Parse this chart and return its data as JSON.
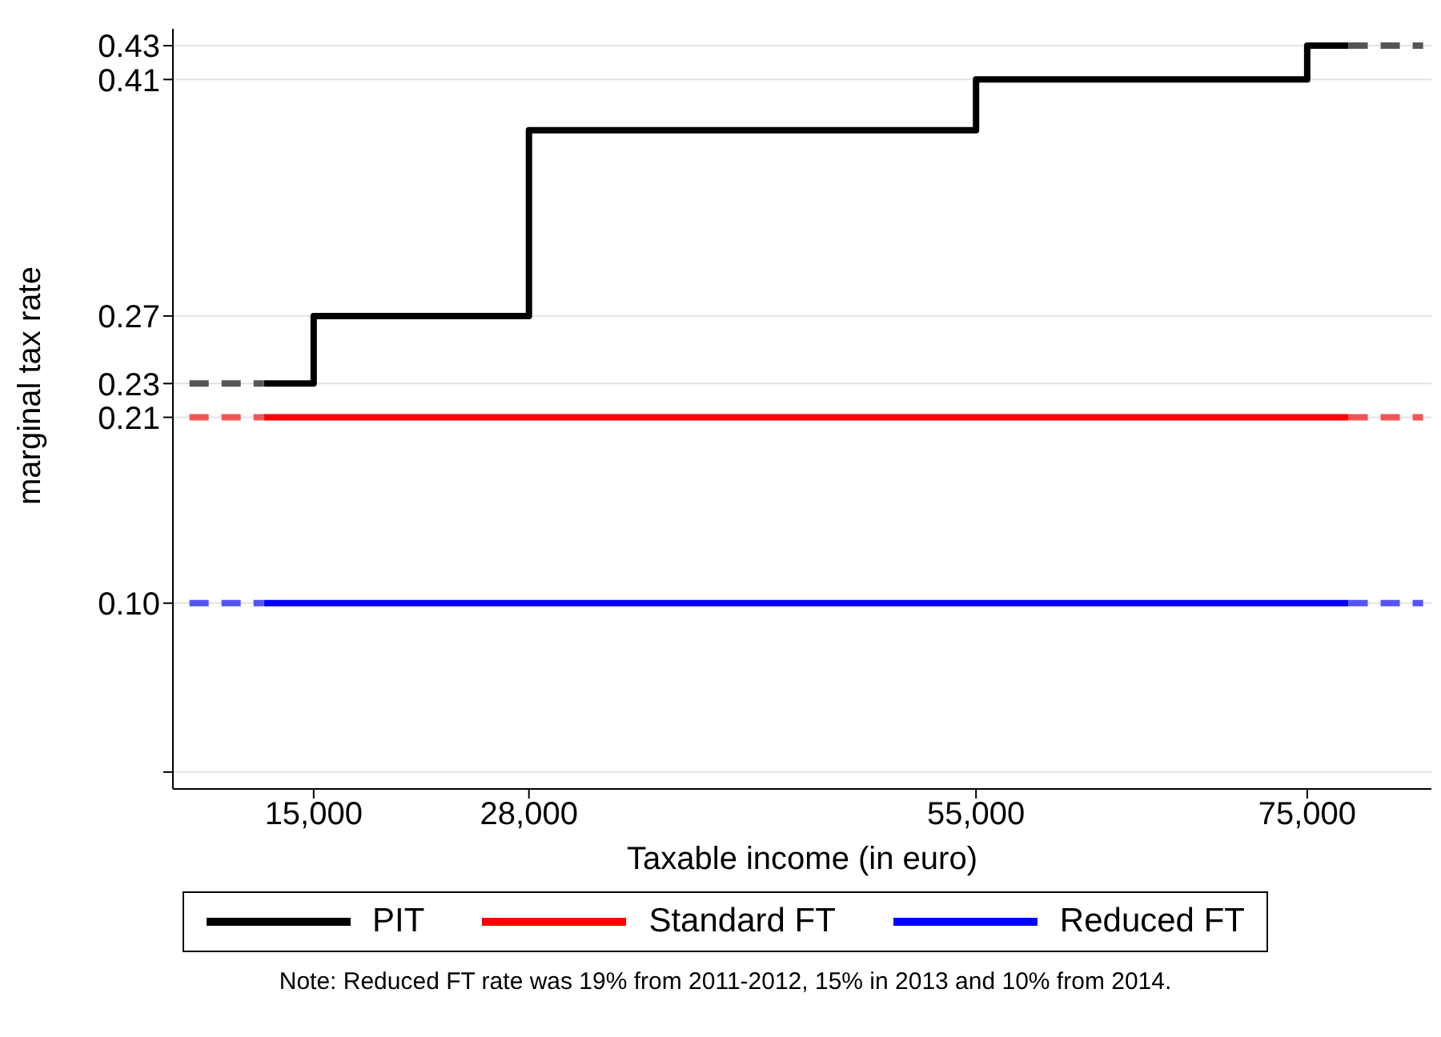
{
  "chart_data": {
    "type": "step",
    "xlabel": "Taxable income (in euro)",
    "ylabel": "marginal tax rate",
    "series": [
      {
        "name": "PIT",
        "color": "#000000",
        "line_style": "solid",
        "x": [
          12000,
          15000,
          28000,
          55000,
          75000,
          77500
        ],
        "values": [
          0.23,
          0.27,
          0.38,
          0.41,
          0.43,
          0.43
        ]
      },
      {
        "name": "Standard FT",
        "color": "#ff0000",
        "line_style": "solid",
        "x": [
          12000,
          77500
        ],
        "values": [
          0.21,
          0.21
        ]
      },
      {
        "name": "Reduced FT",
        "color": "#0000ff",
        "line_style": "solid",
        "x": [
          12000,
          77500
        ],
        "values": [
          0.1,
          0.1
        ]
      },
      {
        "color": "#555555",
        "line_style": "dashed",
        "x": [
          7500,
          12000
        ],
        "values": [
          0.23,
          0.23
        ]
      },
      {
        "color": "#555555",
        "line_style": "dashed",
        "x": [
          77500,
          82000
        ],
        "values": [
          0.43,
          0.43
        ]
      },
      {
        "color": "#f25555",
        "line_style": "dashed",
        "x": [
          7500,
          12000
        ],
        "values": [
          0.21,
          0.21
        ]
      },
      {
        "color": "#f25555",
        "line_style": "dashed",
        "x": [
          77500,
          82000
        ],
        "values": [
          0.21,
          0.21
        ]
      },
      {
        "color": "#5555f2",
        "line_style": "dashed",
        "x": [
          7500,
          12000
        ],
        "values": [
          0.1,
          0.1
        ]
      },
      {
        "color": "#5555f2",
        "line_style": "dashed",
        "x": [
          77500,
          82000
        ],
        "values": [
          0.1,
          0.1
        ]
      }
    ],
    "xlim": [
      6500,
      82500
    ],
    "xticks": [
      {
        "value": 15000,
        "label": "15,000"
      },
      {
        "value": 28000,
        "label": "28,000"
      },
      {
        "value": 55000,
        "label": "55,000"
      },
      {
        "value": 75000,
        "label": "75,000"
      }
    ],
    "ylim": [
      -0.01,
      0.44
    ],
    "yticks": [
      {
        "value": 0,
        "label": null
      },
      {
        "value": 0.1,
        "label": "0.10"
      },
      0.21,
      0.23,
      0.27,
      0.41,
      0.43
    ],
    "grid": "y",
    "legend": "bottom",
    "annotations": [
      "Note: Reduced FT rate was 19% from 2011-2012, 15% in 2013 and 10% from 2014."
    ]
  }
}
